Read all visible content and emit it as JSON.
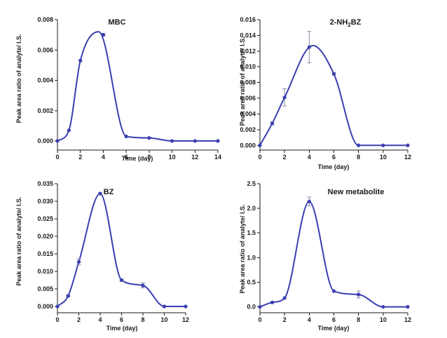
{
  "colors": {
    "series": "#3a3fb0",
    "errorbar": "#8a8aa8",
    "axis": "#1a1a1a"
  },
  "chart_data": [
    {
      "type": "line",
      "title": "MBC",
      "xlabel": "Time (day)",
      "ylabel": "Peak area ratio of analyte/ I.S.",
      "xlim": [
        0,
        14
      ],
      "ylim": [
        -0.0006,
        0.008
      ],
      "xticks": [
        0,
        2,
        4,
        6,
        8,
        10,
        12,
        14
      ],
      "yticks": [
        0.0,
        0.002,
        0.004,
        0.006,
        0.008
      ],
      "ytick_labels": [
        "0.000",
        "0.002",
        "0.004",
        "0.006",
        "0.008"
      ],
      "x": [
        0,
        1,
        2,
        4,
        6,
        8,
        10,
        12,
        14
      ],
      "y": [
        0.0,
        0.0007,
        0.0053,
        0.007,
        0.0003,
        0.0002,
        0.0,
        0.0,
        0.0
      ],
      "err": [
        0,
        0,
        0,
        0.0001,
        0,
        0,
        0,
        0,
        0
      ],
      "peak": [
        3.6,
        0.0072
      ]
    },
    {
      "type": "line",
      "title": "2-NH",
      "title_sub": "2",
      "title_rest": "BZ",
      "xlabel": "Time (day)",
      "ylabel": "Peak area ratio of analyte/ I.S.",
      "xlim": [
        0,
        12
      ],
      "ylim": [
        -0.0006,
        0.016
      ],
      "xticks": [
        0,
        2,
        4,
        6,
        8,
        10,
        12
      ],
      "yticks": [
        0.0,
        0.002,
        0.004,
        0.006,
        0.008,
        0.01,
        0.012,
        0.014,
        0.016
      ],
      "ytick_labels": [
        "0.000",
        "0.002",
        "0.004",
        "0.006",
        "0.008",
        "0.010",
        "0.012",
        "0.014",
        "0.016"
      ],
      "x": [
        0,
        1,
        2,
        4,
        6,
        8,
        10,
        12
      ],
      "y": [
        0.0,
        0.0028,
        0.0061,
        0.0125,
        0.0091,
        0.0,
        0.0,
        0.0
      ],
      "err": [
        0,
        0.0002,
        0.0011,
        0.002,
        0.0002,
        0,
        0,
        0
      ],
      "peak": [
        4.3,
        0.0127
      ]
    },
    {
      "type": "line",
      "title": "BZ",
      "xlabel": "Time (day)",
      "ylabel": "Peak area ratio of analyte/ I.S.",
      "xlim": [
        0,
        12
      ],
      "ylim": [
        -0.0018,
        0.035
      ],
      "xticks": [
        0,
        2,
        4,
        6,
        8,
        10,
        12
      ],
      "yticks": [
        0.0,
        0.005,
        0.01,
        0.015,
        0.02,
        0.025,
        0.03,
        0.035
      ],
      "ytick_labels": [
        "0.000",
        "0.005",
        "0.010",
        "0.015",
        "0.020",
        "0.025",
        "0.030",
        "0.035"
      ],
      "x": [
        0,
        1,
        2,
        4,
        6,
        8,
        10,
        12
      ],
      "y": [
        0.0,
        0.003,
        0.0127,
        0.0322,
        0.0075,
        0.006,
        0.0,
        0.0
      ],
      "err": [
        0,
        0.0003,
        0.0008,
        0.0002,
        0.0003,
        0.0007,
        0,
        0
      ]
    },
    {
      "type": "line",
      "title": "New metabolite",
      "xlabel": "Time (day)",
      "ylabel": "Peak area ratio of analyte/ I.S.",
      "xlim": [
        0,
        12
      ],
      "ylim": [
        -0.12,
        2.5
      ],
      "xticks": [
        0,
        2,
        4,
        6,
        8,
        10,
        12
      ],
      "yticks": [
        0.0,
        0.5,
        1.0,
        1.5,
        2.0,
        2.5
      ],
      "ytick_labels": [
        "0.0",
        "0.5",
        "1.0",
        "1.5",
        "2.0",
        "2.5"
      ],
      "x": [
        0,
        1,
        2,
        4,
        6,
        8,
        10,
        12
      ],
      "y": [
        0.0,
        0.09,
        0.18,
        2.14,
        0.32,
        0.25,
        0.0,
        0.0
      ],
      "err": [
        0,
        0,
        0,
        0.09,
        0,
        0.07,
        0,
        0
      ]
    }
  ]
}
